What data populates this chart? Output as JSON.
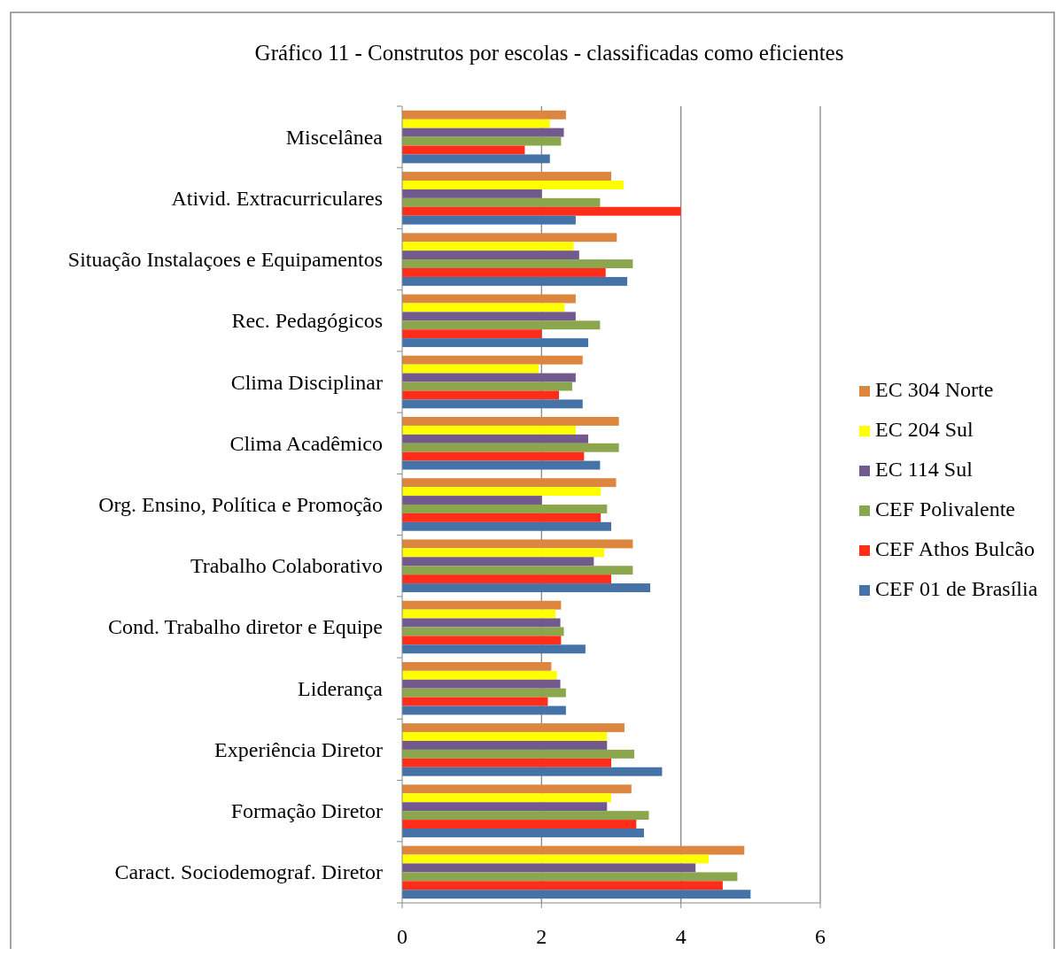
{
  "chart_data": {
    "type": "bar",
    "orientation": "horizontal",
    "title": "Gráfico  11 - Construtos por escolas  - classificadas como eficientes",
    "categories": [
      "Miscelânea",
      "Ativid. Extracurriculares",
      "Situação Instalaçoes e Equipamentos",
      "Rec. Pedagógicos",
      "Clima Disciplinar",
      "Clima Acadêmico",
      "Org. Ensino, Política e Promoção",
      "Trabalho Colaborativo",
      "Cond. Trabalho diretor e Equipe",
      "Liderança",
      "Experiência Diretor",
      "Formação Diretor",
      "Caract. Sociodemograf. Diretor"
    ],
    "series": [
      {
        "name": "EC 304 Norte",
        "color": "#dd8640",
        "values": [
          2.35,
          3.0,
          3.08,
          2.49,
          2.59,
          3.11,
          3.07,
          3.31,
          2.28,
          2.14,
          3.19,
          3.29,
          4.91
        ]
      },
      {
        "name": "EC 204 Sul",
        "color": "#ffff00",
        "values": [
          2.12,
          3.18,
          2.46,
          2.33,
          1.96,
          2.49,
          2.85,
          2.9,
          2.2,
          2.22,
          2.94,
          3.0,
          4.4
        ]
      },
      {
        "name": "EC 114 Sul",
        "color": "#735a8e",
        "values": [
          2.32,
          2.0,
          2.54,
          2.49,
          2.49,
          2.67,
          2.0,
          2.75,
          2.27,
          2.27,
          2.94,
          2.94,
          4.21
        ]
      },
      {
        "name": "CEF Polivalente",
        "color": "#8ba64c",
        "values": [
          2.28,
          2.84,
          3.31,
          2.84,
          2.44,
          3.11,
          2.94,
          3.31,
          2.32,
          2.35,
          3.33,
          3.54,
          4.81
        ]
      },
      {
        "name": "CEF Athos Bulcão",
        "color": "#ff2d1a",
        "values": [
          1.76,
          4.0,
          2.92,
          2.0,
          2.25,
          2.61,
          2.85,
          3.0,
          2.28,
          2.09,
          3.0,
          3.36,
          4.6
        ]
      },
      {
        "name": "CEF 01 de Brasília",
        "color": "#4573a7",
        "values": [
          2.12,
          2.49,
          3.23,
          2.67,
          2.59,
          2.84,
          3.0,
          3.56,
          2.63,
          2.35,
          3.73,
          3.47,
          5.0
        ]
      }
    ],
    "xlim": [
      0,
      6
    ],
    "xticks": [
      0,
      2,
      4,
      6
    ],
    "grid": "x",
    "legend": "right"
  }
}
